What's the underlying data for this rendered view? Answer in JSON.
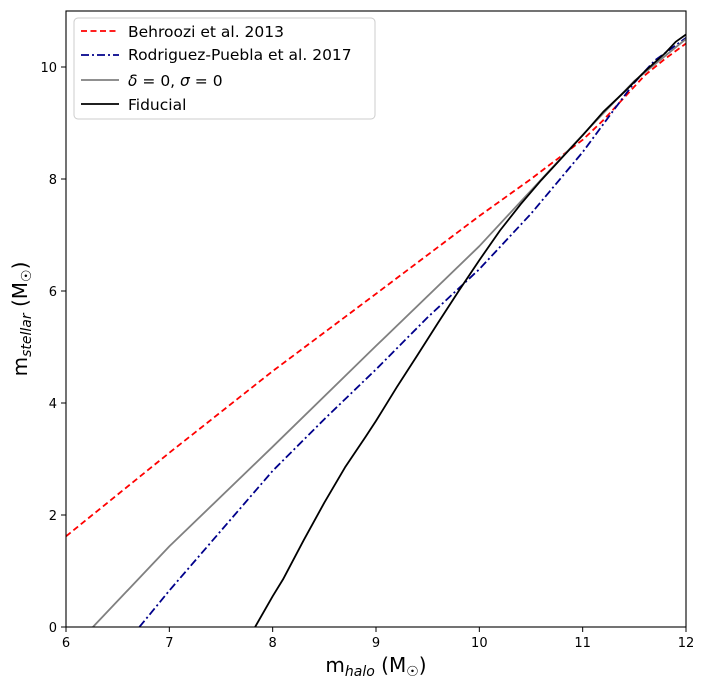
{
  "chart_data": {
    "type": "line",
    "title": "",
    "xlabel": {
      "main": "m",
      "sub": "halo",
      "unit": " (M",
      "sun": "☉",
      "close": ")"
    },
    "ylabel": {
      "main": "m",
      "sub": "stellar",
      "unit": " (M",
      "sun": "☉",
      "close": ")"
    },
    "xlim": [
      6,
      12
    ],
    "ylim": [
      0,
      11
    ],
    "xticks": [
      6,
      7,
      8,
      9,
      10,
      11,
      12
    ],
    "yticks": [
      0,
      2,
      4,
      6,
      8,
      10
    ],
    "grid": false,
    "legend_position": "top-left",
    "series": [
      {
        "name": "Behroozi et al. 2013",
        "color": "#ff0000",
        "style": "dashed",
        "x": [
          6,
          7,
          8,
          9,
          10,
          10.5,
          11,
          11.2,
          11.4,
          11.6,
          11.8,
          12
        ],
        "y": [
          1.62,
          3.11,
          4.57,
          5.95,
          7.34,
          8.0,
          8.7,
          9.05,
          9.45,
          9.85,
          10.15,
          10.42
        ]
      },
      {
        "name": "Rodriguez-Puebla et al. 2017",
        "color": "#00008b",
        "style": "dashdot",
        "x": [
          6.71,
          7,
          7.5,
          8,
          8.5,
          9,
          9.5,
          10,
          10.5,
          11,
          11.3,
          11.5,
          11.7,
          12
        ],
        "y": [
          0,
          0.65,
          1.72,
          2.79,
          3.71,
          4.6,
          5.53,
          6.39,
          7.38,
          8.48,
          9.23,
          9.72,
          10.12,
          10.52
        ]
      },
      {
        "name": "δ = 0, σ = 0",
        "label_parts": {
          "a": "δ",
          "b": " = 0, ",
          "c": "σ",
          "d": " = 0"
        },
        "color": "#808080",
        "style": "solid",
        "x": [
          6.26,
          7,
          8,
          9,
          10,
          11,
          11.5,
          12
        ],
        "y": [
          0,
          1.44,
          3.22,
          5.02,
          6.8,
          8.79,
          9.75,
          10.5
        ]
      },
      {
        "name": "Fiducial",
        "color": "#000000",
        "style": "solid",
        "x": [
          7.83,
          8,
          8.1,
          8.3,
          8.5,
          8.7,
          8.9,
          9.0,
          9.2,
          9.4,
          9.6,
          9.8,
          10.0,
          10.2,
          10.4,
          10.6,
          10.8,
          11.0,
          11.2,
          11.4,
          11.6,
          11.8,
          11.9,
          12
        ],
        "y": [
          0,
          0.55,
          0.85,
          1.55,
          2.22,
          2.85,
          3.4,
          3.68,
          4.28,
          4.85,
          5.43,
          6.0,
          6.55,
          7.08,
          7.55,
          7.98,
          8.38,
          8.78,
          9.2,
          9.55,
          9.92,
          10.25,
          10.45,
          10.58
        ]
      }
    ]
  }
}
